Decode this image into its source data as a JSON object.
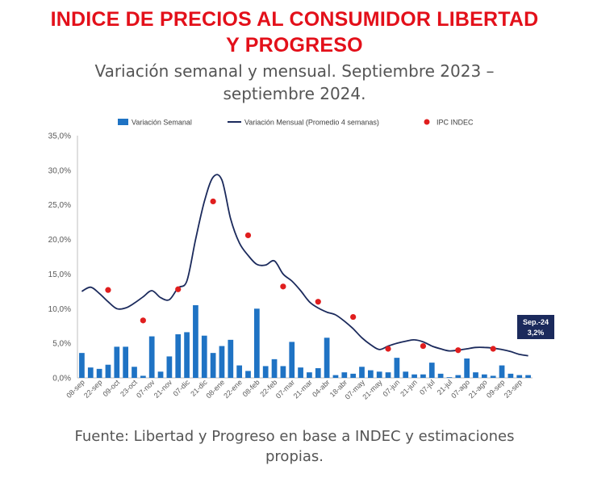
{
  "title_line1": "INDICE DE PRECIOS AL CONSUMIDOR LIBERTAD",
  "title_line2": "Y PROGRESO",
  "subtitle_line1": "Variación semanal y mensual. Septiembre 2023 –",
  "subtitle_line2": "septiembre 2024.",
  "source_line1": "Fuente: Libertad y Progreso en base a INDEC y estimaciones",
  "source_line2": "propias.",
  "colors": {
    "bars": "#1f73c4",
    "line": "#1b2a5c",
    "points": "#e01e1e",
    "callout": "#1b2a5c",
    "title": "#e3101a"
  },
  "chart_data": {
    "type": "bar+line+scatter",
    "legend": [
      "Variación Semanal",
      "Variación Mensual (Promedio 4 semanas)",
      "IPC INDEC"
    ],
    "legend_position": "top",
    "y_ticks": [
      "0,0%",
      "5,0%",
      "10,0%",
      "15,0%",
      "20,0%",
      "25,0%",
      "30,0%",
      "35,0%"
    ],
    "ylim": [
      0,
      35
    ],
    "x_tick_labels": [
      "08-sep",
      "22-sep",
      "09-oct",
      "23-oct",
      "07-nov",
      "21-nov",
      "07-dic",
      "21-dic",
      "08-ene",
      "22-ene",
      "08-feb",
      "22-feb",
      "07-mar",
      "21-mar",
      "04-abr",
      "18-abr",
      "07-may",
      "21-may",
      "07-jun",
      "21-jun",
      "07-jul",
      "21-jul",
      "07-ago",
      "21-ago",
      "09-sep",
      "23-sep"
    ],
    "weekly": [
      3.6,
      1.5,
      1.3,
      1.9,
      4.5,
      4.5,
      1.6,
      0.3,
      6.0,
      0.9,
      3.1,
      6.3,
      6.6,
      10.5,
      6.1,
      3.6,
      4.6,
      5.5,
      1.8,
      1.0,
      10.0,
      1.7,
      2.7,
      1.7,
      5.2,
      1.5,
      0.8,
      1.4,
      5.8,
      0.4,
      0.8,
      0.6,
      1.6,
      1.1,
      0.9,
      0.8,
      2.9,
      0.9,
      0.5,
      0.5,
      2.2,
      0.6,
      0.1,
      0.4,
      2.8,
      0.8,
      0.5,
      0.3,
      1.8,
      0.6,
      0.4,
      0.4
    ],
    "monthly": [
      12.5,
      13.1,
      12.2,
      11.0,
      10.0,
      10.1,
      10.8,
      11.7,
      12.6,
      11.6,
      11.3,
      13.0,
      14.0,
      20.0,
      25.5,
      29.0,
      28.6,
      23.0,
      19.5,
      17.7,
      16.4,
      16.3,
      16.9,
      15.0,
      14.0,
      12.6,
      11.0,
      10.1,
      9.5,
      9.1,
      8.2,
      7.1,
      5.8,
      4.8,
      4.1,
      4.6,
      5.0,
      5.3,
      5.5,
      5.2,
      4.6,
      4.2,
      3.9,
      4.0,
      4.2,
      4.4,
      4.4,
      4.3,
      4.1,
      3.8,
      3.4,
      3.2
    ],
    "ipc_indec": [
      {
        "week": 3,
        "value": 12.7
      },
      {
        "week": 7,
        "value": 8.3
      },
      {
        "week": 11,
        "value": 12.8
      },
      {
        "week": 15,
        "value": 25.5
      },
      {
        "week": 19,
        "value": 20.6
      },
      {
        "week": 23,
        "value": 13.2
      },
      {
        "week": 27,
        "value": 11.0
      },
      {
        "week": 31,
        "value": 8.8
      },
      {
        "week": 35,
        "value": 4.2
      },
      {
        "week": 39,
        "value": 4.6
      },
      {
        "week": 43,
        "value": 4.0
      },
      {
        "week": 47,
        "value": 4.2
      }
    ],
    "callout_line1": "Sep.-24",
    "callout_line2": "3,2%"
  }
}
